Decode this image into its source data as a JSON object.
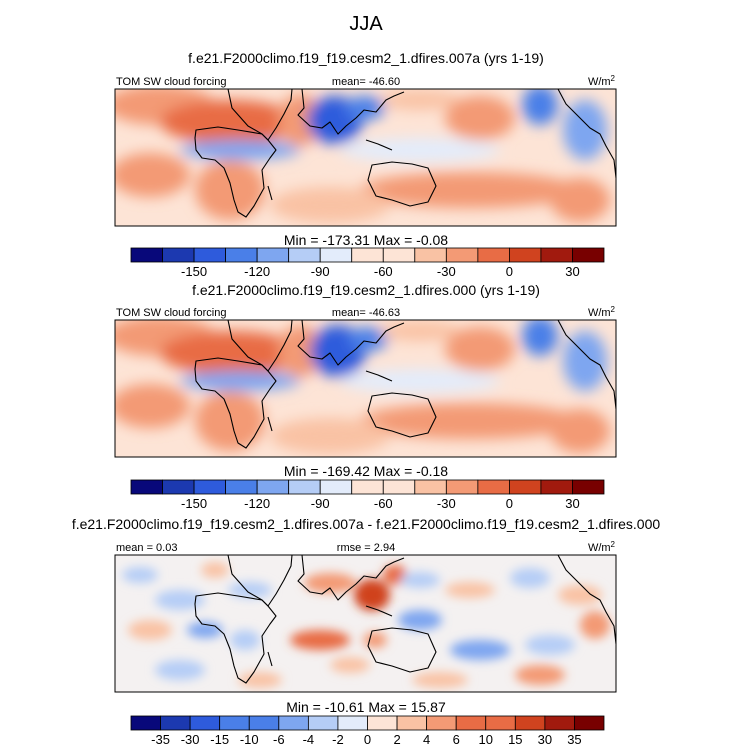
{
  "figure_title": "JJA",
  "colors": {
    "blues": [
      "#08087a",
      "#1c39b0",
      "#2e5bdc",
      "#4a7fe8",
      "#7ea6f0",
      "#b5cdf6",
      "#e3ecfb"
    ],
    "reds": [
      "#fde4d6",
      "#f9c2a4",
      "#f39a75",
      "#e86c45",
      "#d0431f",
      "#a11a0e",
      "#780000"
    ],
    "map_accent_blue": "#2e5bdc",
    "map_accent_red": "#e86c45",
    "coastline": "#000000"
  },
  "chart_data": [
    {
      "type": "heatmap",
      "title": "f.e21.F2000climo.f19_f19.cesm2_1.dfires.007a (yrs 1-19)",
      "left_label": "TOM SW cloud forcing",
      "center_label": "mean= -46.60",
      "units": "W/m",
      "units_exp": "2",
      "stats": "Min = -173.31 Max =  -0.08",
      "mean": -46.6,
      "min": -173.31,
      "max": -0.08,
      "colorbar_levels": [
        -180,
        -165,
        -150,
        -135,
        -120,
        -105,
        -90,
        -75,
        -60,
        -45,
        -30,
        -15,
        0,
        15,
        30,
        45
      ],
      "colorbar_tick_labels": [
        "-150",
        "-120",
        "-90",
        "-60",
        "-30",
        "0",
        "30"
      ]
    },
    {
      "type": "heatmap",
      "title": "f.e21.F2000climo.f19_f19.cesm2_1.dfires.000 (yrs 1-19)",
      "left_label": "TOM SW cloud forcing",
      "center_label": "mean= -46.63",
      "units": "W/m",
      "units_exp": "2",
      "stats": "Min = -169.42 Max =  -0.18",
      "mean": -46.63,
      "min": -169.42,
      "max": -0.18,
      "colorbar_levels": [
        -180,
        -165,
        -150,
        -135,
        -120,
        -105,
        -90,
        -75,
        -60,
        -45,
        -30,
        -15,
        0,
        15,
        30,
        45
      ],
      "colorbar_tick_labels": [
        "-150",
        "-120",
        "-90",
        "-60",
        "-30",
        "0",
        "30"
      ]
    },
    {
      "type": "heatmap",
      "title": "f.e21.F2000climo.f19_f19.cesm2_1.dfires.007a - f.e21.F2000climo.f19_f19.cesm2_1.dfires.000",
      "left_label": "mean =  0.03",
      "center_label": "rmse =  2.94",
      "units": "W/m",
      "units_exp": "2",
      "stats": "Min = -10.61 Max =  15.87",
      "mean": 0.03,
      "rmse": 2.94,
      "min": -10.61,
      "max": 15.87,
      "colorbar_levels": [
        -40,
        -35,
        -30,
        -15,
        -10,
        -6,
        -4,
        -2,
        0,
        2,
        4,
        6,
        10,
        15,
        30,
        35,
        40
      ],
      "colorbar_tick_labels": [
        "-35",
        "-30",
        "-15",
        "-10",
        "-6",
        "-4",
        "-2",
        "0",
        "2",
        "4",
        "6",
        "10",
        "15",
        "30",
        "35"
      ]
    }
  ]
}
